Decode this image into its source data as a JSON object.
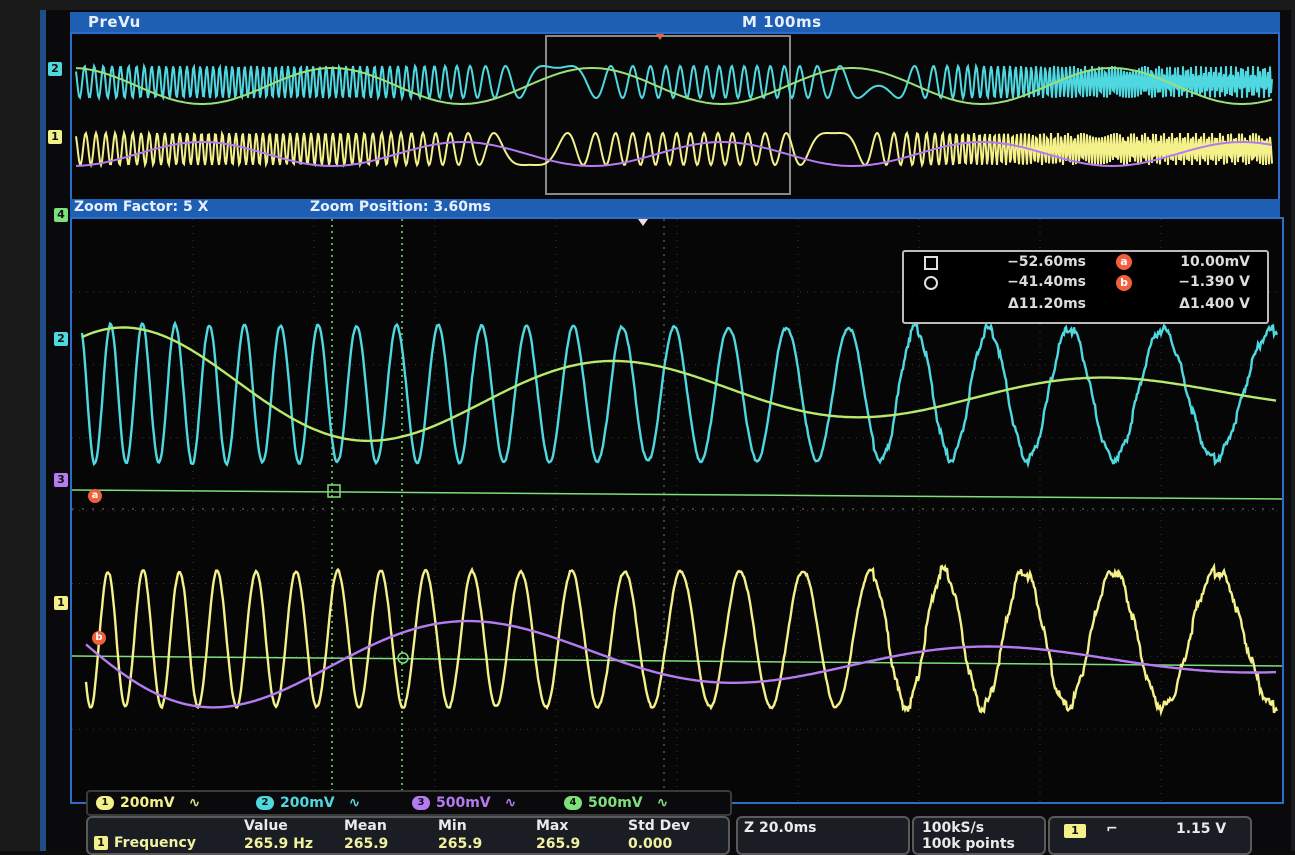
{
  "colors": {
    "ch1": "#f4f08a",
    "ch2": "#4fd8e0",
    "ch3": "#b47cf0",
    "ch4": "#7ee07a",
    "ref": "#7ee07a",
    "accent": "#1f5fb3"
  },
  "header": {
    "prevu_label": "PreVu",
    "timebase": "M 100ms"
  },
  "zoom": {
    "factor_label": "Zoom Factor: 5 X",
    "position_label": "Zoom Position: 3.60ms"
  },
  "channel_markers": {
    "ch1": "1",
    "ch2": "2",
    "ch3": "3",
    "ch4": "4",
    "ref_a": "a",
    "ref_b": "b"
  },
  "cursors": {
    "t1": "−52.60ms",
    "t2": "−41.40ms",
    "dt": "Δ11.20ms",
    "v_a": "10.00mV",
    "v_b": "−1.390 V",
    "dv": "Δ1.400 V",
    "ref_a": "a",
    "ref_b": "b"
  },
  "scales": [
    {
      "ch": "1",
      "value": "200mV"
    },
    {
      "ch": "2",
      "value": "200mV"
    },
    {
      "ch": "3",
      "value": "500mV"
    },
    {
      "ch": "4",
      "value": "500mV"
    }
  ],
  "measurement": {
    "label": "Frequency",
    "ch": "1",
    "headers": {
      "value": "Value",
      "mean": "Mean",
      "min": "Min",
      "max": "Max",
      "std": "Std Dev"
    },
    "values": {
      "value": "265.9 Hz",
      "mean": "265.9",
      "min": "265.9",
      "max": "265.9",
      "std": "0.000"
    }
  },
  "zoom_scale": "Z 20.0ms",
  "sample_rate": {
    "rate": "100kS/s",
    "points": "100k points"
  },
  "trigger": {
    "ch": "1",
    "level": "1.15 V"
  }
}
